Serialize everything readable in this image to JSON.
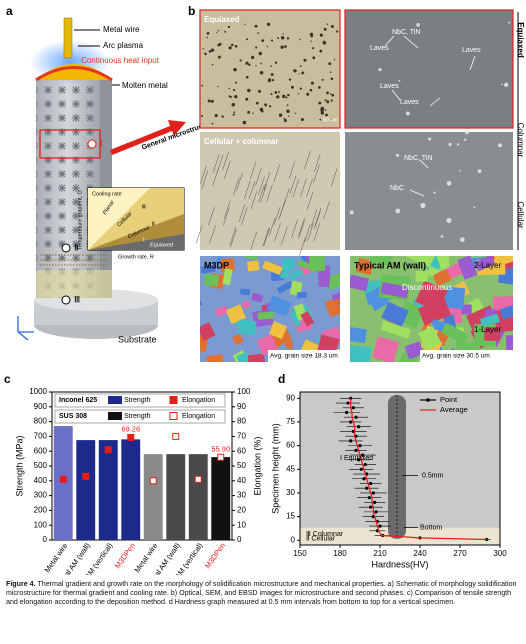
{
  "panel_a": {
    "label": "a",
    "metal_wire": "Metal wire",
    "arc_plasma": "Arc plasma",
    "heat_input": "Continuous heat input",
    "molten_metal": "Molten metal",
    "general": "General microstructure",
    "substrate": "Substrate",
    "zones": [
      "Ⅰ",
      "Ⅱ",
      "Ⅲ"
    ],
    "inset": {
      "cooling_rate": "Cooling rate",
      "g_axis": "Temperature  gradient, G",
      "r_axis": "Growth rate, R",
      "regions": [
        "Planar",
        "Cellular",
        "Columnar",
        "Equiaxed"
      ],
      "numerals": [
        "Ⅲ",
        "Ⅱ",
        "Ⅰ"
      ]
    }
  },
  "panel_b": {
    "label": "b",
    "equiaxed": "Equiaxed",
    "cellular_columnar": "Cellular + columnar",
    "sem1": [
      "NbC, TiN",
      "Laves",
      "Laves",
      "Laves",
      "Laves"
    ],
    "sem2": [
      "NbC, TiN",
      "NbC"
    ],
    "scale": "50 um",
    "side": [
      "Equiaxed",
      "Columnar",
      "Cellular"
    ],
    "m3dp": "M3DP",
    "typical": "Typical AM (wall)",
    "layers": [
      "2-Layer",
      "Discontinuous",
      "1-Layer"
    ],
    "grain": [
      "Avg. grain size 18.3 um",
      "Avg. grain size 30.5 um"
    ]
  },
  "chart_data": [
    {
      "type": "bar",
      "label": "c",
      "ylabel": "Strength (MPa)",
      "y2label": "Elongation (%)",
      "ylim": [
        0,
        1000
      ],
      "yticks": [
        0,
        100,
        200,
        300,
        400,
        500,
        600,
        700,
        800,
        900,
        1000
      ],
      "y2lim": [
        0,
        100
      ],
      "y2ticks": [
        0,
        10,
        20,
        30,
        40,
        50,
        60,
        70,
        80,
        90,
        100
      ],
      "groups": [
        {
          "name": "Inconel 625",
          "categories": [
            "Metal wire",
            "Typical AM (wall)",
            "Typical AM (vertical)",
            "M3DPen"
          ],
          "category_colors": [
            "#000",
            "#000",
            "#000",
            "#e0201b"
          ],
          "series": [
            {
              "name": "Strength",
              "colors": [
                "#6a70c6",
                "#1d2a8c",
                "#1d2a8c",
                "#1d2a8c"
              ],
              "values": [
                770,
                675,
                675,
                680
              ]
            },
            {
              "name": "Elongation",
              "axis": "y2",
              "color": "#e0201b",
              "marker": "filled",
              "values": [
                41,
                43,
                61,
                69.26
              ],
              "value_labels": [
                null,
                null,
                null,
                "69.26"
              ]
            }
          ]
        },
        {
          "name": "SUS 308",
          "categories": [
            "Metal wire",
            "Typical AM (wall)",
            "Typical AM (vertical)",
            "M3DPen"
          ],
          "category_colors": [
            "#000",
            "#000",
            "#000",
            "#e0201b"
          ],
          "series": [
            {
              "name": "Strength",
              "colors": [
                "#8a8a8a",
                "#4a4a4a",
                "#4a4a4a",
                "#111111"
              ],
              "values": [
                580,
                580,
                580,
                560
              ]
            },
            {
              "name": "Elongation",
              "axis": "y2",
              "color": "#e0201b",
              "marker": "hollow",
              "values": [
                40,
                70,
                41,
                55.9
              ],
              "value_labels": [
                null,
                null,
                null,
                "55.90"
              ]
            }
          ]
        }
      ]
    },
    {
      "type": "scatter",
      "label": "d",
      "xlabel": "Hardness(HV)",
      "ylabel": "Specimen height (mm)",
      "xlim": [
        150,
        300
      ],
      "xticks": [
        150,
        180,
        210,
        240,
        270,
        300
      ],
      "ylim": [
        -3,
        94
      ],
      "yticks": [
        0,
        15,
        30,
        45,
        60,
        75,
        90
      ],
      "annotations": [
        "Ⅰ Equiaxed",
        "0.5mm",
        "Bottom",
        "Ⅲ Columnar",
        "Ⅱ Cellular"
      ],
      "series": [
        {
          "name": "Point",
          "color": "#000000",
          "x": [
            188,
            186,
            190,
            185,
            192,
            188,
            194,
            190,
            192,
            188,
            195,
            192,
            197,
            194,
            199,
            196,
            200,
            198,
            203,
            200,
            205,
            202,
            206,
            203,
            207,
            205,
            208,
            210,
            208,
            212,
            240,
            290
          ],
          "y": [
            90,
            87,
            84,
            81,
            78,
            75,
            72,
            69,
            66,
            63,
            60,
            57,
            54,
            51,
            48,
            45,
            42,
            39,
            36,
            33,
            30,
            27,
            24,
            21,
            18,
            15,
            12,
            9,
            6,
            3,
            1.5,
            0.5
          ],
          "errors": [
            8,
            9,
            8,
            10,
            9,
            8,
            9,
            10,
            8,
            9,
            9,
            8,
            10,
            9,
            8,
            9,
            10,
            9,
            8,
            9,
            10,
            9,
            8,
            9,
            9,
            8,
            9,
            8,
            6,
            6,
            4,
            3
          ]
        },
        {
          "name": "Average",
          "color": "#e0201b",
          "x": [
            188,
            188,
            188,
            189,
            189,
            190,
            191,
            191,
            191,
            192,
            193,
            194,
            195,
            196,
            197,
            198,
            199,
            200,
            201,
            202,
            203,
            204,
            204,
            205,
            205,
            206,
            207,
            208,
            209,
            211,
            240,
            290
          ],
          "y": [
            90,
            87,
            84,
            81,
            78,
            75,
            72,
            69,
            66,
            63,
            60,
            57,
            54,
            51,
            48,
            45,
            42,
            39,
            36,
            33,
            30,
            27,
            24,
            21,
            18,
            15,
            12,
            9,
            6,
            3,
            1.5,
            0.5
          ]
        }
      ]
    }
  ],
  "caption": {
    "label": "Figure 4.",
    "text": "Thermal gradient and growth rate on the morphology of solidification microstructure and mechanical properties. a) Schematic of morphology solidification microstructure for thermal gradient and cooling rate. b) Optical, SEM, and EBSD images for microstructure and second phases. c) Comparison of tensile strength and elongation according to the deposition method. d Hardness graph measured at 0.5 mm intervals from bottom to top for a vertical specimen."
  }
}
